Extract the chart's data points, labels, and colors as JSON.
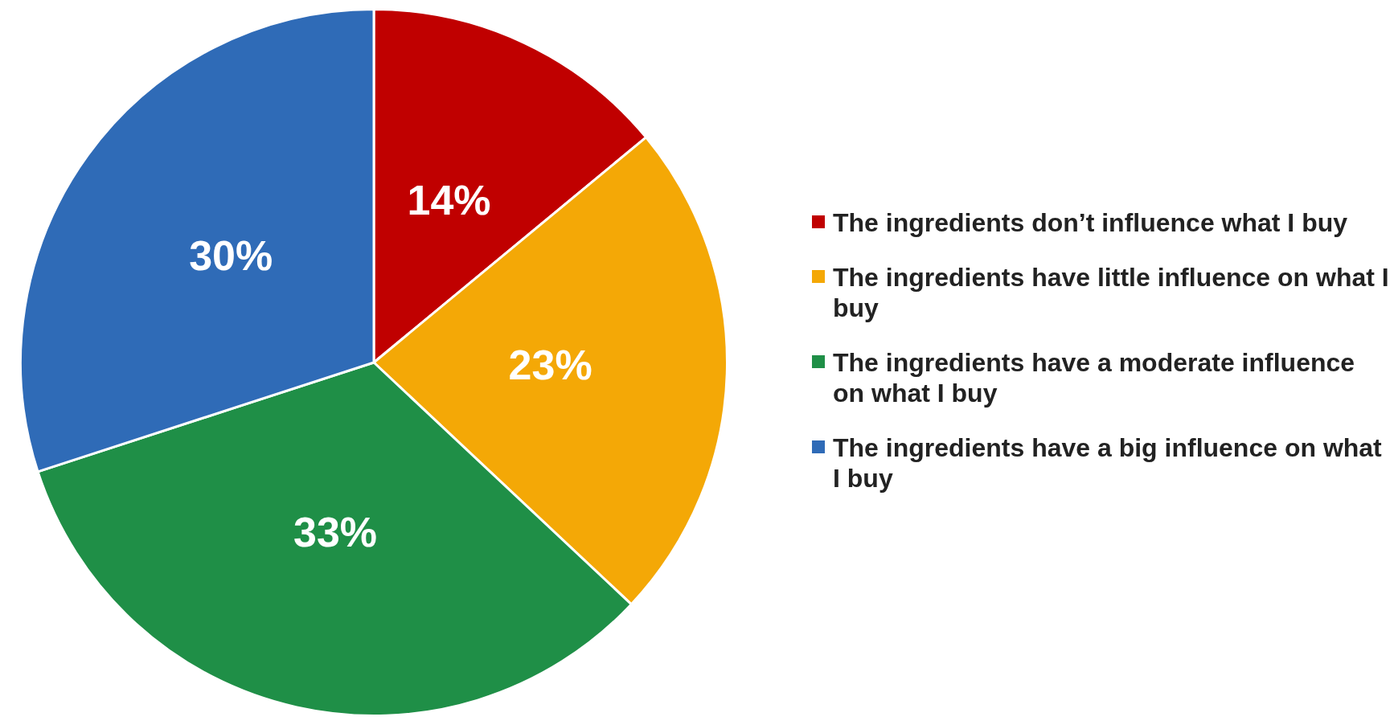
{
  "chart_data": {
    "type": "pie",
    "categories": [
      "The ingredients don’t influence what I buy",
      "The ingredients have little influence on what I buy",
      "The ingredients have a moderate influence on what I buy",
      "The ingredients have a big influence on what I buy"
    ],
    "values": [
      14,
      23,
      33,
      30
    ],
    "colors": [
      "#c00000",
      "#f4a806",
      "#1f8f47",
      "#2f6bb7"
    ],
    "value_labels": [
      "14%",
      "23%",
      "33%",
      "30%"
    ],
    "legend": "right"
  }
}
